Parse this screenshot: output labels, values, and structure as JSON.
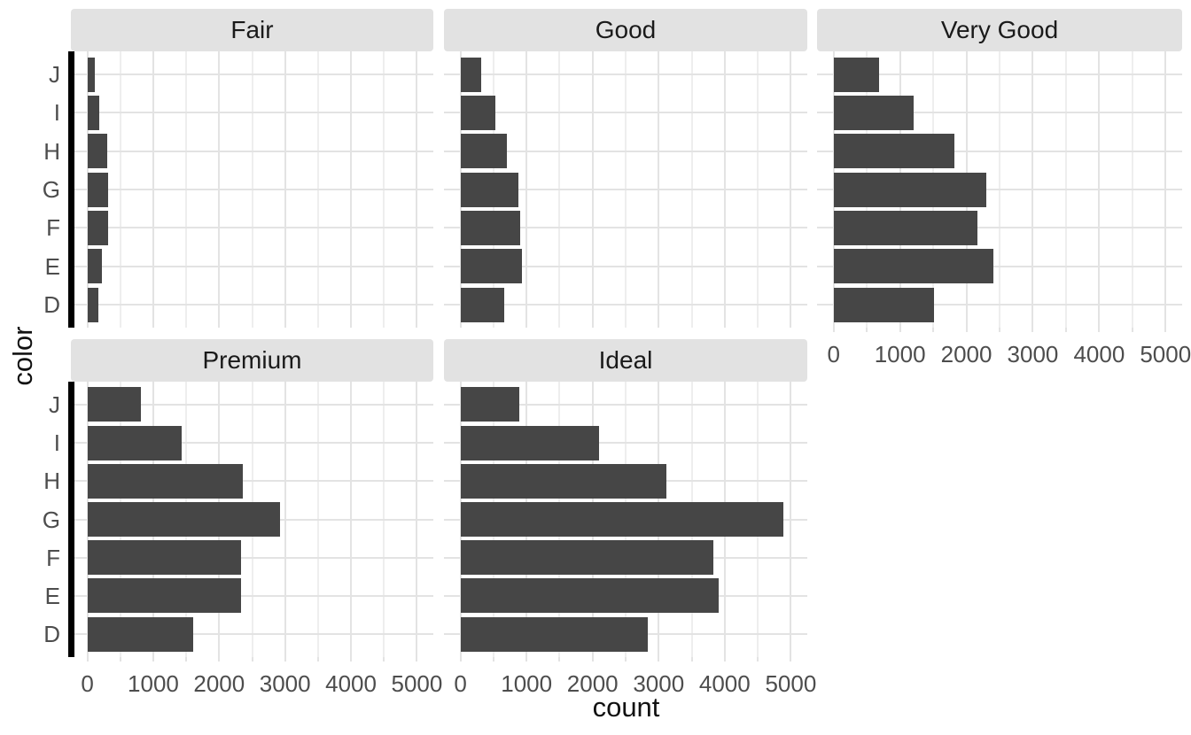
{
  "chart_data": {
    "type": "bar",
    "orientation": "horizontal",
    "facet_variable": "cut",
    "xlabel": "count",
    "ylabel": "color",
    "categories_top_to_bottom": [
      "J",
      "I",
      "H",
      "G",
      "F",
      "E",
      "D"
    ],
    "x_ticks": [
      0,
      1000,
      2000,
      3000,
      4000,
      5000
    ],
    "x_tick_labels": [
      "0",
      "1000",
      "2000",
      "3000",
      "4000",
      "5000"
    ],
    "x_minor_ticks": [
      500,
      1500,
      2500,
      3500,
      4500
    ],
    "xlim": [
      -250,
      5250
    ],
    "grid": "major-and-minor",
    "legend": "none",
    "facets": [
      {
        "label": "Fair",
        "values": [
          119,
          175,
          303,
          314,
          312,
          224,
          163
        ]
      },
      {
        "label": "Good",
        "values": [
          307,
          522,
          702,
          871,
          909,
          933,
          662
        ]
      },
      {
        "label": "Very Good",
        "values": [
          678,
          1204,
          1824,
          2299,
          2164,
          2400,
          1513
        ]
      },
      {
        "label": "Premium",
        "values": [
          808,
          1428,
          2360,
          2924,
          2331,
          2337,
          1603
        ]
      },
      {
        "label": "Ideal",
        "values": [
          896,
          2093,
          3115,
          4884,
          3826,
          3903,
          2834
        ]
      }
    ],
    "colors": {
      "bar_fill": "#464646",
      "strip_background": "#e2e2e2",
      "strip_text": "#1a1a1a",
      "grid_major": "#e3e3e3",
      "grid_minor": "#eeeeee",
      "tick_text": "#4d4d4d",
      "axis_line": "#000000",
      "background": "#ffffff"
    }
  }
}
